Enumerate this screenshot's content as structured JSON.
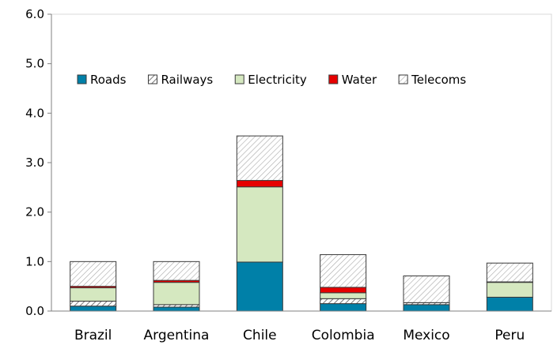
{
  "chart_data": {
    "type": "bar",
    "stacked": true,
    "categories": [
      "Brazil",
      "Argentina",
      "Chile",
      "Colombia",
      "Mexico",
      "Peru"
    ],
    "series": [
      {
        "name": "Roads",
        "color": "#0080a8",
        "fill_style": "solid",
        "values": [
          0.1,
          0.08,
          0.99,
          0.15,
          0.13,
          0.28
        ]
      },
      {
        "name": "Railways",
        "color": "#555555",
        "fill_style": "diagonal-hatch",
        "values": [
          0.1,
          0.05,
          0.0,
          0.1,
          0.04,
          0.0
        ]
      },
      {
        "name": "Electricity",
        "color": "#d5e8c0",
        "fill_style": "solid",
        "values": [
          0.27,
          0.45,
          1.52,
          0.12,
          0.0,
          0.3
        ]
      },
      {
        "name": "Water",
        "color": "#e60000",
        "fill_style": "solid",
        "values": [
          0.03,
          0.04,
          0.13,
          0.11,
          0.0,
          0.01
        ]
      },
      {
        "name": "Telecoms",
        "color": "#aaaaaa",
        "fill_style": "light-diagonal-hatch",
        "values": [
          0.5,
          0.38,
          0.9,
          0.66,
          0.54,
          0.38
        ]
      }
    ],
    "ylim": [
      0,
      6
    ],
    "yticks": [
      "0.0",
      "1.0",
      "2.0",
      "3.0",
      "4.0",
      "5.0",
      "6.0"
    ],
    "grid": false,
    "legend_position": "top"
  }
}
